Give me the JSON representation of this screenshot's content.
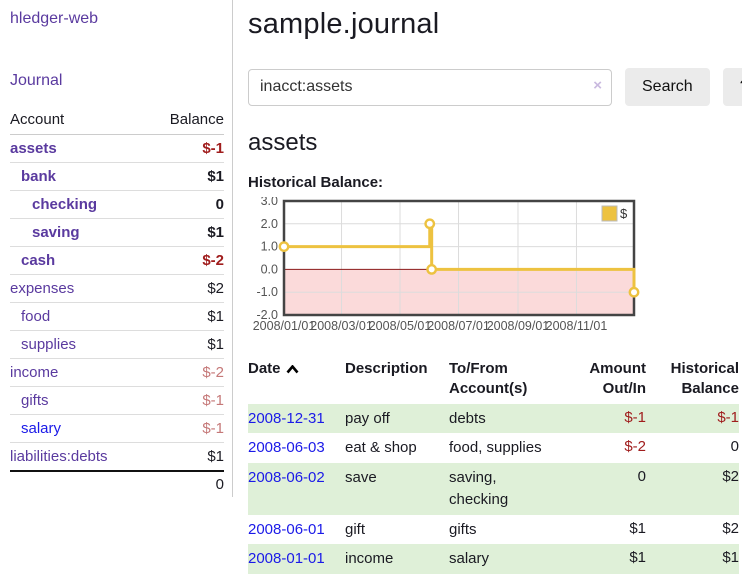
{
  "app": {
    "brand": "hledger-web",
    "nav_journal": "Journal"
  },
  "sidebar": {
    "headers": {
      "account": "Account",
      "balance": "Balance"
    },
    "rows": [
      {
        "account": "assets",
        "indent": 1,
        "bold": true,
        "link": "purple",
        "balance": "$-1",
        "balance_class": "neg"
      },
      {
        "account": "bank",
        "indent": 2,
        "bold": true,
        "link": "purple",
        "balance": "$1",
        "balance_class": ""
      },
      {
        "account": "checking",
        "indent": 3,
        "bold": true,
        "link": "purple",
        "balance": "0",
        "balance_class": ""
      },
      {
        "account": "saving",
        "indent": 3,
        "bold": true,
        "link": "purple",
        "balance": "$1",
        "balance_class": ""
      },
      {
        "account": "cash",
        "indent": 2,
        "bold": true,
        "link": "purple",
        "balance": "$-2",
        "balance_class": "neg"
      },
      {
        "account": "expenses",
        "indent": 1,
        "bold": false,
        "link": "purple",
        "balance": "$2",
        "balance_class": ""
      },
      {
        "account": "food",
        "indent": 2,
        "bold": false,
        "link": "purple",
        "balance": "$1",
        "balance_class": ""
      },
      {
        "account": "supplies",
        "indent": 2,
        "bold": false,
        "link": "purple",
        "balance": "$1",
        "balance_class": ""
      },
      {
        "account": "income",
        "indent": 1,
        "bold": false,
        "link": "purple",
        "balance": "$-2",
        "balance_class": "negm"
      },
      {
        "account": "gifts",
        "indent": 2,
        "bold": false,
        "link": "purple",
        "balance": "$-1",
        "balance_class": "negm"
      },
      {
        "account": "salary",
        "indent": 2,
        "bold": false,
        "link": "blue",
        "balance": "$-1",
        "balance_class": "negm"
      },
      {
        "account": "liabilities:debts",
        "indent": 1,
        "bold": false,
        "link": "purple",
        "balance": "$1",
        "balance_class": ""
      }
    ],
    "total": "0"
  },
  "main": {
    "title": "sample.journal",
    "search": {
      "value": "inacct:assets",
      "clear_icon": "×",
      "button": "Search",
      "help": "?"
    },
    "account_heading": "assets",
    "chart_label": "Historical Balance:"
  },
  "chart_data": {
    "type": "line",
    "title": "Historical Balance",
    "step": true,
    "series": [
      {
        "name": "$",
        "color": "#EDC240",
        "points": [
          {
            "date": "2008-01-01",
            "day": 0,
            "value": 1
          },
          {
            "date": "2008-06-01",
            "day": 152,
            "value": 2
          },
          {
            "date": "2008-06-03",
            "day": 154,
            "value": 0
          },
          {
            "date": "2008-12-31",
            "day": 365,
            "value": -1
          }
        ]
      }
    ],
    "ylim": [
      -2,
      3
    ],
    "yticks": [
      {
        "label": "3.0",
        "value": 3
      },
      {
        "label": "2.0",
        "value": 2
      },
      {
        "label": "1.0",
        "value": 1
      },
      {
        "label": "0.0",
        "value": 0
      },
      {
        "label": "-1.0",
        "value": -1
      },
      {
        "label": "-2.0",
        "value": -2
      }
    ],
    "xticks": [
      {
        "label": "2008/01/01",
        "day": 0
      },
      {
        "label": "2008/03/01",
        "day": 60
      },
      {
        "label": "2008/05/01",
        "day": 121
      },
      {
        "label": "2008/07/01",
        "day": 182
      },
      {
        "label": "2008/09/01",
        "day": 244
      },
      {
        "label": "2008/11/01",
        "day": 305
      }
    ],
    "x_range_days": 365,
    "legend": {
      "label": "$",
      "position": "top-right"
    },
    "grid": true,
    "colors": {
      "line": "#EDC240",
      "marker_fill": "#ffffff",
      "negative_region": "#fbdada",
      "zero_line": "#8b1a1a",
      "gridline": "#dcdcdc",
      "border": "#444444",
      "tick_text": "#545454"
    }
  },
  "register": {
    "sort": {
      "column": "Date",
      "direction": "ascending"
    },
    "headers": {
      "date": "Date",
      "description": "Description",
      "account": "To/From Account(s)",
      "amount": "Amount Out/In",
      "balance": "Historical Balance"
    },
    "rows": [
      {
        "date": "2008-12-31",
        "description": "pay off",
        "accounts": "debts",
        "amount": "$-1",
        "amount_negative": true,
        "balance": "$-1",
        "balance_negative": true,
        "shaded": true
      },
      {
        "date": "2008-06-03",
        "description": "eat & shop",
        "accounts": "food, supplies",
        "amount": "$-2",
        "amount_negative": true,
        "balance": "0",
        "balance_negative": false,
        "shaded": false
      },
      {
        "date": "2008-06-02",
        "description": "save",
        "accounts": "saving, checking",
        "amount": "0",
        "amount_negative": false,
        "balance": "$2",
        "balance_negative": false,
        "shaded": true
      },
      {
        "date": "2008-06-01",
        "description": "gift",
        "accounts": "gifts",
        "amount": "$1",
        "amount_negative": false,
        "balance": "$2",
        "balance_negative": false,
        "shaded": false
      },
      {
        "date": "2008-01-01",
        "description": "income",
        "accounts": "salary",
        "amount": "$1",
        "amount_negative": false,
        "balance": "$1",
        "balance_negative": false,
        "shaded": true
      }
    ]
  },
  "colors": {
    "link_purple": "#5a3a9f",
    "link_blue": "#1b1ae8",
    "negative_strong": "#a01d1d",
    "negative_muted": "#c57878",
    "row_stripe_green": "#dff0d8"
  }
}
